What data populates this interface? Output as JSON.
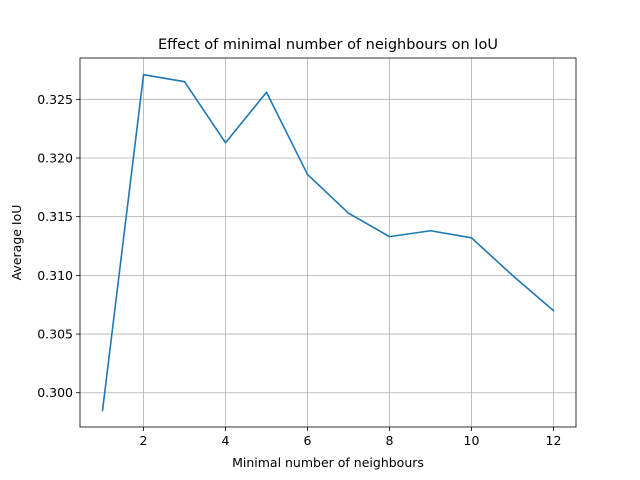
{
  "chart_data": {
    "type": "line",
    "title": "Effect of minimal number of neighbours on IoU",
    "xlabel": "Minimal number of neighbours",
    "ylabel": "Average IoU",
    "x": [
      1,
      2,
      3,
      4,
      5,
      6,
      7,
      8,
      9,
      10,
      11,
      12
    ],
    "series": [
      {
        "values": [
          0.2985,
          0.3271,
          0.3265,
          0.3213,
          0.3256,
          0.3186,
          0.3153,
          0.3133,
          0.3138,
          0.3132,
          0.31,
          0.307
        ]
      }
    ],
    "xticks": [
      2,
      4,
      6,
      8,
      10,
      12
    ],
    "yticks": [
      0.3,
      0.305,
      0.31,
      0.315,
      0.32,
      0.325
    ],
    "ytick_labels": [
      "0.300",
      "0.305",
      "0.310",
      "0.315",
      "0.320",
      "0.325"
    ],
    "xlim": [
      0.45,
      12.55
    ],
    "ylim": [
      0.29708,
      0.32852
    ],
    "grid": true,
    "line_color": "#1f77b4",
    "grid_color": "#b0b0b0"
  }
}
